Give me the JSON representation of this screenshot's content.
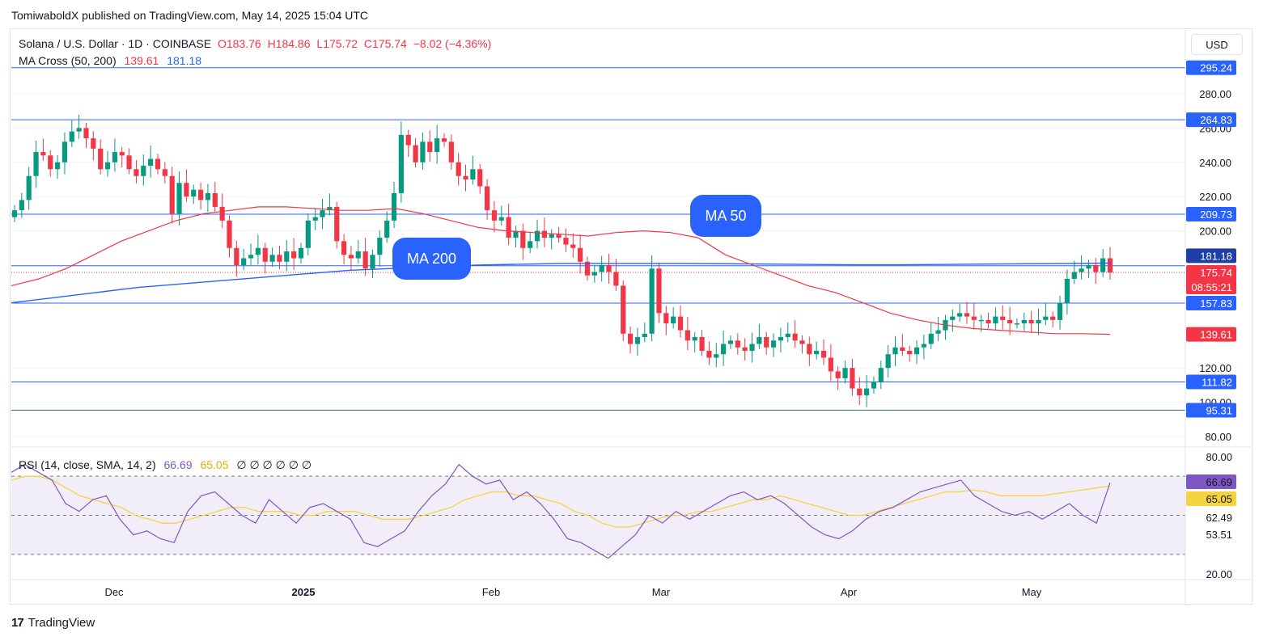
{
  "header": {
    "published": "TomiwaboldX published on TradingView.com, May 14, 2025 15:04 UTC",
    "symbol": "Solana / U.S. Dollar · 1D · COINBASE",
    "open": "O183.76",
    "high": "H184.86",
    "low": "L175.72",
    "close": "C175.74",
    "change": "−8.02 (−4.36%)",
    "indicator": "MA Cross (50, 200)",
    "ma50_value": "139.61",
    "ma200_value": "181.18",
    "currency": "USD"
  },
  "rsi_legend": {
    "label": "RSI (14, close, SMA, 14, 2)",
    "rsi_value": "66.69",
    "sma_value": "65.05",
    "empties": "∅ ∅ ∅ ∅ ∅ ∅"
  },
  "callouts": {
    "ma50": "MA 50",
    "ma200": "MA 200"
  },
  "footer": {
    "logo": "17",
    "brand": "TradingView"
  },
  "colors": {
    "up": "#089981",
    "down": "#f23645",
    "ma50": "#f23645",
    "ma200": "#2962ff",
    "hline": "#2962ff",
    "rsi": "#7e57c2",
    "rsi_sma": "#f5d33f",
    "rsi_band": "#7e57c2"
  },
  "chart_data": [
    {
      "type": "candlestick",
      "title": "Solana / U.S. Dollar · 1D · COINBASE",
      "y_ticks": [
        80,
        100,
        120,
        200,
        220,
        240,
        260,
        280
      ],
      "ylim": [
        80,
        295
      ],
      "x_ticks": [
        "Dec",
        "2025",
        "Feb",
        "Mar",
        "Apr",
        "May"
      ],
      "price_badges": [
        {
          "value": "295.24",
          "kind": "line"
        },
        {
          "value": "264.83",
          "kind": "line"
        },
        {
          "value": "209.73",
          "kind": "line"
        },
        {
          "value": "181.18",
          "kind": "ma200"
        },
        {
          "value": "179.65",
          "kind": "line"
        },
        {
          "value": "175.74",
          "kind": "last"
        },
        {
          "value": "08:55:21",
          "kind": "countdown"
        },
        {
          "value": "157.83",
          "kind": "line"
        },
        {
          "value": "139.61",
          "kind": "ma50"
        },
        {
          "value": "111.82",
          "kind": "line"
        },
        {
          "value": "95.31",
          "kind": "line"
        }
      ],
      "horizontal_levels": [
        295.24,
        264.83,
        209.73,
        179.65,
        157.83,
        111.82,
        95.31
      ],
      "last_price": 175.74,
      "close_series": [
        212,
        218,
        232,
        246,
        244,
        236,
        240,
        252,
        258,
        260,
        254,
        248,
        236,
        240,
        246,
        244,
        236,
        232,
        238,
        242,
        236,
        232,
        210,
        228,
        220,
        224,
        218,
        222,
        214,
        206,
        190,
        180,
        184,
        186,
        190,
        182,
        186,
        182,
        188,
        184,
        190,
        206,
        208,
        212,
        214,
        194,
        186,
        184,
        188,
        178,
        186,
        196,
        206,
        222,
        256,
        250,
        240,
        252,
        246,
        254,
        252,
        240,
        232,
        230,
        236,
        226,
        212,
        206,
        208,
        196,
        200,
        190,
        194,
        200,
        196,
        198,
        196,
        192,
        190,
        182,
        174,
        176,
        180,
        176,
        168,
        140,
        134,
        138,
        140,
        178,
        152,
        146,
        150,
        142,
        136,
        138,
        130,
        126,
        128,
        134,
        136,
        132,
        130,
        134,
        138,
        132,
        136,
        138,
        140,
        136,
        134,
        128,
        130,
        126,
        118,
        114,
        120,
        108,
        104,
        108,
        112,
        120,
        128,
        132,
        130,
        128,
        132,
        134,
        140,
        142,
        148,
        150,
        152,
        150,
        148,
        148,
        146,
        150,
        148,
        146,
        146,
        148,
        146,
        148,
        150,
        148,
        158,
        172,
        176,
        178,
        180,
        176,
        184,
        175.74
      ],
      "series": [
        {
          "name": "MA 50",
          "values": [
            168,
            172,
            178,
            186,
            194,
            200,
            206,
            210,
            212,
            214,
            214,
            213,
            212,
            212,
            213,
            210,
            206,
            202,
            200,
            199,
            198,
            197,
            199,
            200,
            199,
            196,
            186,
            180,
            174,
            168,
            164,
            158,
            152,
            148,
            145,
            143,
            142,
            141,
            140,
            140,
            139.61
          ]
        },
        {
          "name": "MA 200",
          "values": [
            158,
            161,
            164,
            167,
            169,
            171,
            173,
            175,
            177,
            178,
            179,
            180,
            180.5,
            181,
            181,
            181,
            181,
            180.8,
            180.6,
            180.4,
            180.2,
            180.2,
            180.4,
            180.6,
            180.8,
            181,
            181.18
          ]
        }
      ]
    },
    {
      "type": "line",
      "title": "RSI (14, close, SMA, 14, 2)",
      "y_ticks": [
        20,
        53.51,
        62.49,
        65.05,
        66.69,
        80
      ],
      "ylim": [
        20,
        80
      ],
      "series": [
        {
          "name": "RSI",
          "values": [
            72,
            76,
            72,
            68,
            56,
            52,
            58,
            60,
            48,
            40,
            42,
            38,
            36,
            52,
            60,
            62,
            56,
            50,
            46,
            58,
            52,
            46,
            54,
            56,
            52,
            48,
            36,
            34,
            38,
            42,
            52,
            60,
            66,
            76,
            70,
            66,
            68,
            58,
            62,
            56,
            48,
            38,
            36,
            32,
            28,
            34,
            40,
            50,
            46,
            52,
            48,
            52,
            56,
            60,
            62,
            58,
            60,
            56,
            50,
            44,
            40,
            38,
            42,
            48,
            52,
            54,
            58,
            62,
            64,
            66,
            68,
            60,
            56,
            52,
            50,
            52,
            48,
            52,
            56,
            50,
            46,
            66.69
          ]
        },
        {
          "name": "RSI-based MA",
          "values": [
            68,
            70,
            70,
            68,
            64,
            60,
            58,
            56,
            54,
            50,
            48,
            46,
            46,
            48,
            50,
            52,
            54,
            54,
            52,
            52,
            52,
            50,
            50,
            52,
            52,
            52,
            50,
            48,
            48,
            48,
            50,
            52,
            54,
            58,
            60,
            62,
            62,
            60,
            60,
            58,
            56,
            52,
            50,
            46,
            44,
            44,
            46,
            48,
            50,
            50,
            52,
            52,
            54,
            56,
            58,
            58,
            60,
            58,
            56,
            54,
            52,
            50,
            50,
            52,
            54,
            56,
            58,
            60,
            62,
            62,
            63,
            62,
            60,
            60,
            60,
            60,
            61,
            62,
            63,
            64,
            65.05
          ]
        }
      ]
    }
  ]
}
